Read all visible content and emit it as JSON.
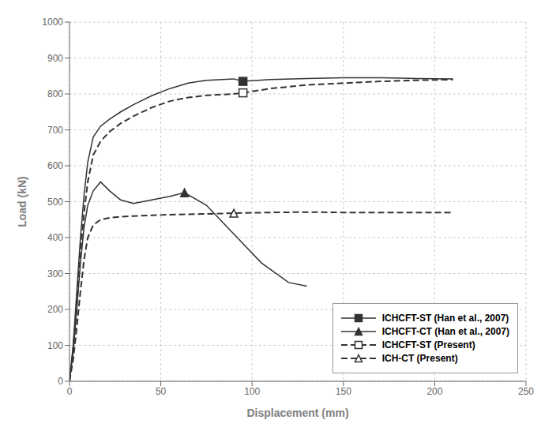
{
  "chart_data": {
    "type": "line",
    "xlabel": "Displacement (mm)",
    "ylabel": "Load (kN)",
    "xlim": [
      0,
      250
    ],
    "ylim": [
      0,
      1000
    ],
    "xticks": [
      0,
      50,
      100,
      150,
      200,
      250
    ],
    "yticks": [
      0,
      100,
      200,
      300,
      400,
      500,
      600,
      700,
      800,
      900,
      1000
    ],
    "grid": true,
    "legend": "lower right",
    "series": [
      {
        "name": "ICHCFT-ST (Han et al., 2007)",
        "color": "#333333",
        "line_style": "solid",
        "marker": "square-filled",
        "marker_x": 95,
        "marker_y": 835,
        "x": [
          0,
          2,
          4,
          6,
          8,
          10,
          13,
          17,
          22,
          28,
          35,
          45,
          55,
          65,
          75,
          90,
          95,
          110,
          130,
          150,
          170,
          190,
          210
        ],
        "values": [
          0,
          100,
          250,
          400,
          520,
          610,
          680,
          710,
          730,
          750,
          770,
          795,
          815,
          830,
          838,
          842,
          835,
          840,
          843,
          845,
          845,
          843,
          842
        ]
      },
      {
        "name": "ICHCFT-CT (Han et al., 2007)",
        "color": "#333333",
        "line_style": "solid",
        "marker": "triangle-filled",
        "marker_x": 63,
        "marker_y": 525,
        "x": [
          0,
          2,
          4,
          6,
          8,
          10,
          13,
          17,
          22,
          28,
          35,
          45,
          55,
          63,
          75,
          90,
          105,
          120,
          130
        ],
        "values": [
          0,
          80,
          200,
          330,
          430,
          490,
          530,
          555,
          530,
          505,
          495,
          505,
          515,
          525,
          490,
          410,
          330,
          275,
          265
        ]
      },
      {
        "name": "ICHCFT-ST (Present)",
        "color": "#333333",
        "line_style": "dashed",
        "marker": "square-open",
        "marker_x": 95,
        "marker_y": 803,
        "x": [
          0,
          2,
          4,
          6,
          8,
          10,
          13,
          17,
          22,
          28,
          35,
          45,
          55,
          65,
          75,
          90,
          95,
          110,
          130,
          150,
          170,
          190,
          210
        ],
        "values": [
          0,
          90,
          220,
          360,
          470,
          555,
          630,
          668,
          695,
          718,
          738,
          762,
          780,
          790,
          796,
          800,
          803,
          815,
          825,
          830,
          835,
          838,
          840
        ]
      },
      {
        "name": "ICH-CT (Present)",
        "color": "#333333",
        "line_style": "dashed",
        "marker": "triangle-open",
        "marker_x": 90,
        "marker_y": 468,
        "x": [
          0,
          2,
          4,
          6,
          8,
          10,
          13,
          17,
          22,
          28,
          35,
          45,
          55,
          65,
          75,
          90,
          110,
          130,
          150,
          170,
          190,
          210
        ],
        "values": [
          0,
          60,
          150,
          250,
          340,
          400,
          435,
          450,
          455,
          458,
          460,
          462,
          464,
          465,
          466,
          468,
          470,
          471,
          470,
          470,
          470,
          470
        ]
      }
    ]
  }
}
